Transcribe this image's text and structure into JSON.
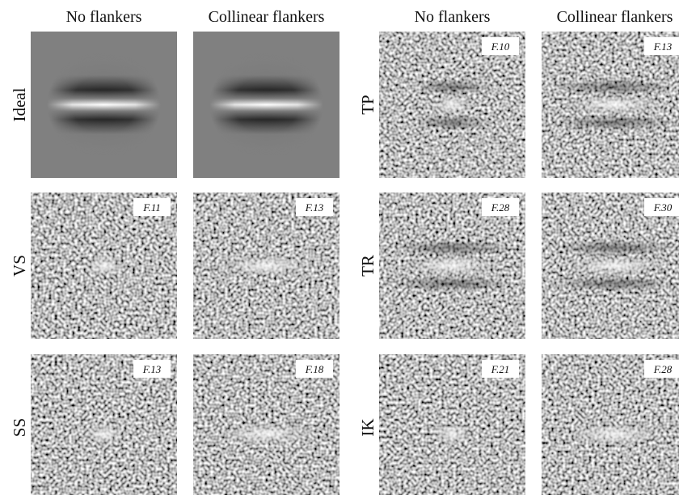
{
  "panels": [
    {
      "columns": [
        "No flankers",
        "Collinear flankers"
      ],
      "rows": [
        {
          "label": "Ideal"
        },
        {
          "label": "VS",
          "f_labels": [
            "F.11",
            "F.13"
          ]
        },
        {
          "label": "SS",
          "f_labels": [
            "F.13",
            "F.18"
          ]
        }
      ]
    },
    {
      "columns": [
        "No flankers",
        "Collinear flankers"
      ],
      "rows": [
        {
          "label": "TP",
          "f_labels": [
            "F.10",
            "F.13"
          ]
        },
        {
          "label": "TR",
          "f_labels": [
            "F.28",
            "F.30"
          ]
        },
        {
          "label": "IK",
          "f_labels": [
            "F.21",
            "F.28"
          ]
        }
      ]
    }
  ]
}
